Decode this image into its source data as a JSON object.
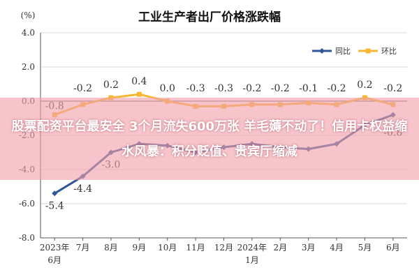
{
  "chart_data": {
    "type": "line",
    "title": "工业生产者出厂价格涨跌幅",
    "ylabel": "(%)",
    "ylim": [
      -8.0,
      4.0
    ],
    "yticks": [
      "4.0",
      "2.0",
      "0.0",
      "-2.0",
      "-4.0",
      "-6.0",
      "-8.0"
    ],
    "categories": [
      "2023年6月",
      "7月",
      "8月",
      "9月",
      "10月",
      "11月",
      "12月",
      "2024年1月",
      "2月",
      "3月",
      "4月",
      "5月",
      "6月"
    ],
    "category_lines": [
      [
        "2023年",
        "6月"
      ],
      [
        "7月"
      ],
      [
        "8月"
      ],
      [
        "9月"
      ],
      [
        "10月"
      ],
      [
        "11月"
      ],
      [
        "12月"
      ],
      [
        "2024年",
        "1月"
      ],
      [
        "2月"
      ],
      [
        "3月"
      ],
      [
        "4月"
      ],
      [
        "5月"
      ],
      [
        "6月"
      ]
    ],
    "series": [
      {
        "name": "同比",
        "color": "#2f5597",
        "values": [
          -5.4,
          -4.4,
          -3.0,
          -2.5,
          -2.6,
          -3.0,
          -2.7,
          -2.5,
          -2.7,
          -2.8,
          -2.5,
          -1.4,
          -0.8
        ],
        "labels": [
          "-5.4",
          "-4.4",
          "-3.0",
          "",
          "",
          "",
          "",
          "",
          "",
          "",
          "",
          "",
          "-0.8"
        ]
      },
      {
        "name": "环比",
        "color": "#f7b731",
        "values": [
          -0.8,
          -0.2,
          0.2,
          0.4,
          0.0,
          -0.3,
          -0.3,
          -0.2,
          -0.2,
          -0.1,
          -0.2,
          0.2,
          -0.2
        ],
        "labels": [
          "-0.8",
          "-0.2",
          "0.2",
          "0.4",
          "0.0",
          "-0.3",
          "-0.3",
          "-0.2",
          "-0.2",
          "-0.1",
          "-0.2",
          "0.2",
          "-0.2"
        ]
      }
    ],
    "grid": true,
    "legend_position": "top-right"
  },
  "overlay": {
    "text": "股票配资平台最安全 3个月流失600万张 羊毛薅不动了！信用卡权益缩水风暴：积分贬值、贵宾厅缩减"
  }
}
